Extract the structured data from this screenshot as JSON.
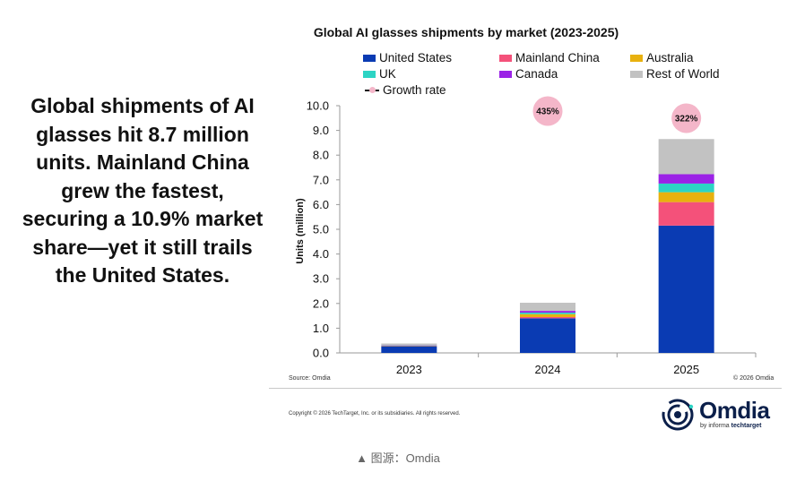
{
  "headline": "Global shipments of AI glasses hit 8.7 million units. Mainland China grew the fastest, securing a 10.9% market share—yet it still trails the United States.",
  "chart_data": {
    "type": "bar",
    "stacked": true,
    "title": "Global AI glasses shipments by market (2023-2025)",
    "categories": [
      "2023",
      "2024",
      "2025"
    ],
    "ylabel": "Units (million)",
    "xlabel": "",
    "ylim": [
      0,
      10
    ],
    "yticks": [
      "0.0",
      "1.0",
      "2.0",
      "3.0",
      "4.0",
      "5.0",
      "6.0",
      "7.0",
      "8.0",
      "9.0",
      "10.0"
    ],
    "series": [
      {
        "name": "United States",
        "color": "#0a3bb3",
        "values": [
          0.27,
          1.4,
          5.15
        ]
      },
      {
        "name": "Mainland China",
        "color": "#f4517a",
        "values": [
          0.01,
          0.05,
          0.95
        ]
      },
      {
        "name": "Australia",
        "color": "#e8b10f",
        "values": [
          0.01,
          0.12,
          0.4
        ]
      },
      {
        "name": "UK",
        "color": "#2dd4c4",
        "values": [
          0.01,
          0.06,
          0.35
        ]
      },
      {
        "name": "Canada",
        "color": "#9b22e6",
        "values": [
          0.01,
          0.07,
          0.38
        ]
      },
      {
        "name": "Rest of World",
        "color": "#c2c2c2",
        "values": [
          0.07,
          0.33,
          1.42
        ]
      }
    ],
    "growth_rate": {
      "name": "Growth rate",
      "values": [
        null,
        "435%",
        "322%"
      ],
      "color": "#f4b6c9"
    },
    "legend_position": "top"
  },
  "footer": {
    "source": "Source: Omdia",
    "chart_copyright": "© 2026 Omdia",
    "copyright": "Copyright © 2026 TechTarget, Inc. or its subsidiaries. All rights reserved."
  },
  "logo": {
    "word": "Omdia",
    "by": "by informa",
    "tt": "techtarget"
  },
  "caption": "▲ 图源：Omdia"
}
